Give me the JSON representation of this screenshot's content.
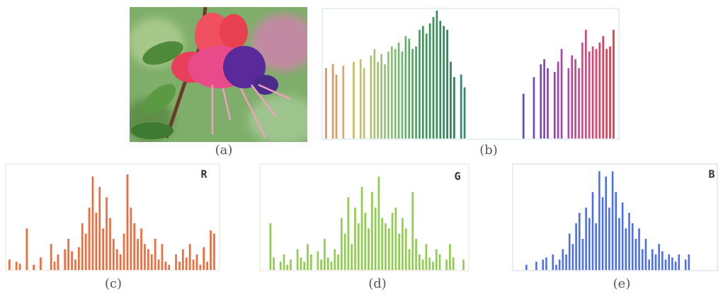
{
  "chart_data": [
    {
      "type": "photo",
      "caption": "(a)"
    },
    {
      "type": "bar",
      "caption": "(b)",
      "color_stops": [
        "#e0905a",
        "#c9c06a",
        "#8cc47a",
        "#3f9a5a",
        "#2e7f55",
        "#3a9ab0",
        "#4a55c8",
        "#8a45b5",
        "#d04a8a",
        "#e03a45"
      ],
      "values": [
        55,
        null,
        58,
        50,
        null,
        57,
        null,
        null,
        60,
        null,
        62,
        55,
        null,
        65,
        70,
        60,
        66,
        58,
        68,
        72,
        70,
        75,
        68,
        80,
        78,
        70,
        72,
        85,
        88,
        82,
        90,
        95,
        100,
        92,
        88,
        85,
        60,
        48,
        null,
        50,
        40,
        null,
        null,
        null,
        null,
        null,
        null,
        null,
        null,
        null,
        null,
        null,
        null,
        null,
        null,
        null,
        null,
        35,
        null,
        null,
        48,
        null,
        58,
        62,
        55,
        null,
        52,
        60,
        70,
        null,
        55,
        65,
        62,
        55,
        75,
        85,
        68,
        72,
        70,
        75,
        80,
        70,
        72,
        85
      ]
    },
    {
      "type": "bar",
      "caption": "(c)",
      "channel": "R",
      "color": "#f06a3a",
      "values": [
        10,
        null,
        8,
        6,
        null,
        40,
        null,
        5,
        null,
        12,
        null,
        null,
        25,
        8,
        15,
        null,
        20,
        30,
        18,
        10,
        22,
        45,
        35,
        60,
        90,
        55,
        80,
        40,
        70,
        50,
        30,
        20,
        15,
        35,
        92,
        60,
        45,
        30,
        40,
        25,
        20,
        15,
        30,
        10,
        25,
        8,
        5,
        null,
        15,
        8,
        20,
        12,
        25,
        10,
        15,
        5,
        22,
        8,
        38,
        35
      ]
    },
    {
      "type": "bar",
      "caption": "(d)",
      "channel": "G",
      "color": "#8ccd4a",
      "values": [
        null,
        null,
        45,
        12,
        null,
        8,
        15,
        5,
        10,
        null,
        20,
        12,
        8,
        25,
        15,
        null,
        18,
        10,
        30,
        12,
        8,
        20,
        15,
        50,
        35,
        70,
        25,
        60,
        45,
        80,
        55,
        40,
        75,
        60,
        90,
        50,
        45,
        40,
        55,
        60,
        35,
        50,
        40,
        20,
        75,
        30,
        15,
        10,
        25,
        12,
        8,
        20,
        15,
        null,
        10,
        25,
        12,
        null,
        null,
        10
      ]
    },
    {
      "type": "bar",
      "caption": "(e)",
      "channel": "B",
      "color": "#4a6ef0",
      "values": [
        null,
        null,
        null,
        5,
        null,
        null,
        8,
        null,
        10,
        12,
        null,
        15,
        5,
        10,
        20,
        15,
        35,
        25,
        45,
        55,
        30,
        60,
        50,
        75,
        45,
        95,
        70,
        90,
        60,
        95,
        75,
        50,
        65,
        40,
        55,
        45,
        30,
        40,
        20,
        30,
        10,
        20,
        15,
        25,
        18,
        10,
        15,
        12,
        8,
        15,
        null,
        10,
        15,
        null,
        null,
        null,
        null,
        null,
        null,
        null
      ]
    }
  ]
}
